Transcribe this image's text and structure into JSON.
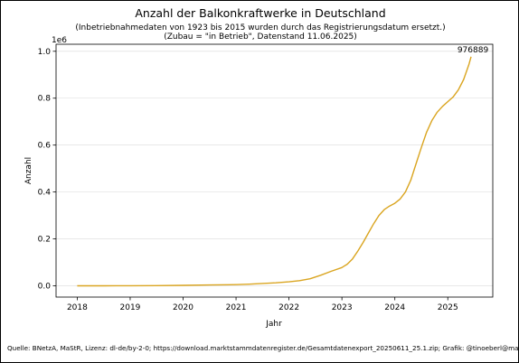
{
  "chart_data": {
    "type": "line",
    "title": "Anzahl der Balkonkraftwerke in Deutschland",
    "subtitle_lines": [
      "(Inbetriebnahmedaten von 1923 bis 2015 wurden durch das Registrierungsdatum ersetzt.)",
      "(Zubau = \"in Betrieb\", Datenstand 11.06.2025)"
    ],
    "xlabel": "Jahr",
    "ylabel": "Anzahl",
    "y_offset_label": "1e6",
    "xlim": [
      2017.6,
      2025.85
    ],
    "ylim": [
      -48000,
      1030000
    ],
    "x_ticks": [
      2018,
      2019,
      2020,
      2021,
      2022,
      2023,
      2024,
      2025
    ],
    "x_tick_labels": [
      "2018",
      "2019",
      "2020",
      "2021",
      "2022",
      "2023",
      "2024",
      "2025"
    ],
    "y_ticks": [
      0,
      200000,
      400000,
      600000,
      800000,
      1000000
    ],
    "y_tick_labels": [
      "0.0",
      "0.2",
      "0.4",
      "0.6",
      "0.8",
      "1.0"
    ],
    "grid": "horizontal",
    "end_label": "976889",
    "series_color": "#daa520",
    "source": "Quelle: BNetzA, MaStR, Lizenz: dl-de/by-2-0; https://download.marktstammdatenregister.de/Gesamtdatenexport_20250611_25.1.zip; Grafik: @tinoeberl@mastodon.online",
    "series": [
      {
        "x": [
          2018.0,
          2018.5,
          2019.0,
          2019.5,
          2020.0,
          2020.5,
          2021.0,
          2021.25,
          2021.5,
          2021.75,
          2022.0,
          2022.2,
          2022.4,
          2022.6,
          2022.8,
          2023.0,
          2023.1,
          2023.2,
          2023.3,
          2023.4,
          2023.5,
          2023.6,
          2023.7,
          2023.8,
          2023.9,
          2024.0,
          2024.1,
          2024.2,
          2024.3,
          2024.4,
          2024.5,
          2024.6,
          2024.7,
          2024.8,
          2024.9,
          2025.0,
          2025.1,
          2025.2,
          2025.3,
          2025.4,
          2025.44
        ],
        "values": [
          0,
          200,
          500,
          1000,
          2000,
          3500,
          5000,
          7000,
          10000,
          13000,
          17000,
          22000,
          30000,
          45000,
          62000,
          78000,
          92000,
          115000,
          148000,
          185000,
          225000,
          265000,
          300000,
          325000,
          340000,
          352000,
          370000,
          400000,
          450000,
          520000,
          590000,
          655000,
          705000,
          740000,
          765000,
          785000,
          805000,
          835000,
          880000,
          945000,
          976889
        ]
      }
    ]
  }
}
